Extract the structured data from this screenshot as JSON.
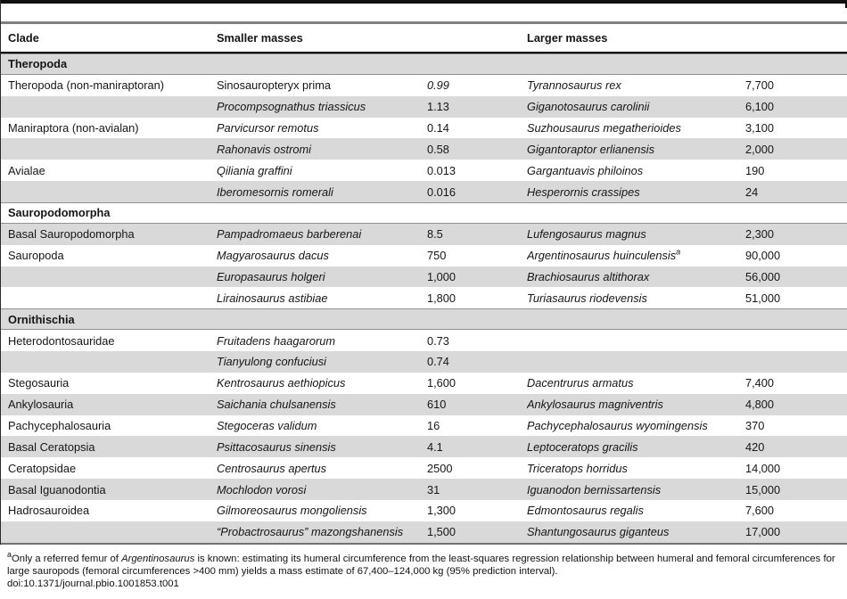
{
  "table": {
    "columns": {
      "clade": "Clade",
      "smaller": "Smaller masses",
      "larger": "Larger masses"
    },
    "rows": [
      {
        "type": "section",
        "label": "Theropoda",
        "shade": "gray"
      },
      {
        "type": "data",
        "shade": "white",
        "clade": "Theropoda (non-maniraptoran)",
        "smaller_species": "Sinosauropteryx prima",
        "smaller_species_italic": false,
        "smaller_mass": "0.99",
        "smaller_mass_italic": true,
        "larger_species": "Tyrannosaurus rex",
        "larger_mass": "7,700"
      },
      {
        "type": "data",
        "shade": "gray",
        "clade": "",
        "smaller_species": "Procompsognathus triassicus",
        "smaller_mass": "1.13",
        "larger_species": "Giganotosaurus carolinii",
        "larger_mass": "6,100"
      },
      {
        "type": "data",
        "shade": "white",
        "clade": "Maniraptora (non-avialan)",
        "smaller_species": "Parvicursor remotus",
        "smaller_mass": "0.14",
        "larger_species": "Suzhousaurus megatherioides",
        "larger_mass": "3,100"
      },
      {
        "type": "data",
        "shade": "gray",
        "clade": "",
        "smaller_species": "Rahonavis ostromi",
        "smaller_mass": "0.58",
        "larger_species": "Gigantoraptor erlianensis",
        "larger_mass": "2,000"
      },
      {
        "type": "data",
        "shade": "white",
        "clade": "Avialae",
        "smaller_species": "Qiliania graffini",
        "smaller_mass": "0.013",
        "larger_species": "Gargantuavis philoinos",
        "larger_mass": "190"
      },
      {
        "type": "data",
        "shade": "gray",
        "clade": "",
        "smaller_species": "Iberomesornis romerali",
        "smaller_mass": "0.016",
        "larger_species": "Hesperornis crassipes",
        "larger_mass": "24"
      },
      {
        "type": "section",
        "label": "Sauropodomorpha",
        "shade": "white"
      },
      {
        "type": "data",
        "shade": "gray",
        "clade": "Basal Sauropodomorpha",
        "smaller_species": "Pampadromaeus barberenai",
        "smaller_mass": "8.5",
        "larger_species": "Lufengosaurus magnus",
        "larger_mass": "2,300"
      },
      {
        "type": "data",
        "shade": "white",
        "clade": "Sauropoda",
        "smaller_species": "Magyarosaurus dacus",
        "smaller_mass": "750",
        "larger_species": "Argentinosaurus huinculensis",
        "larger_species_sup": "a",
        "larger_mass": "90,000"
      },
      {
        "type": "data",
        "shade": "gray",
        "clade": "",
        "smaller_species": "Europasaurus holgeri",
        "smaller_mass": "1,000",
        "larger_species": "Brachiosaurus altithorax",
        "larger_mass": "56,000"
      },
      {
        "type": "data",
        "shade": "white",
        "clade": "",
        "smaller_species": "Lirainosaurus astibiae",
        "smaller_mass": "1,800",
        "larger_species": "Turiasaurus riodevensis",
        "larger_mass": "51,000"
      },
      {
        "type": "section",
        "label": "Ornithischia",
        "shade": "gray"
      },
      {
        "type": "data",
        "shade": "white",
        "clade": "Heterodontosauridae",
        "smaller_species": "Fruitadens haagarorum",
        "smaller_mass": "0.73",
        "larger_species": "",
        "larger_mass": ""
      },
      {
        "type": "data",
        "shade": "gray",
        "clade": "",
        "smaller_species": "Tianyulong confuciusi",
        "smaller_mass": "0.74",
        "larger_species": "",
        "larger_mass": ""
      },
      {
        "type": "data",
        "shade": "white",
        "clade": "Stegosauria",
        "smaller_species": "Kentrosaurus aethiopicus",
        "smaller_mass": "1,600",
        "larger_species": "Dacentrurus armatus",
        "larger_mass": "7,400"
      },
      {
        "type": "data",
        "shade": "gray",
        "clade": "Ankylosauria",
        "smaller_species": "Saichania chulsanensis",
        "smaller_mass": "610",
        "larger_species": "Ankylosaurus magniventris",
        "larger_mass": "4,800"
      },
      {
        "type": "data",
        "shade": "white",
        "clade": "Pachycephalosauria",
        "smaller_species": "Stegoceras validum",
        "smaller_mass": "16",
        "larger_species": "Pachycephalosaurus wyomingensis",
        "larger_mass": "370"
      },
      {
        "type": "data",
        "shade": "gray",
        "clade": "Basal Ceratopsia",
        "smaller_species": "Psittacosaurus sinensis",
        "smaller_mass": "4.1",
        "larger_species": "Leptoceratops gracilis",
        "larger_mass": "420"
      },
      {
        "type": "data",
        "shade": "white",
        "clade": "Ceratopsidae",
        "smaller_species": "Centrosaurus apertus",
        "smaller_mass": "2500",
        "larger_species": "Triceratops horridus",
        "larger_mass": "14,000"
      },
      {
        "type": "data",
        "shade": "gray",
        "clade": "Basal Iguanodontia",
        "smaller_species": "Mochlodon vorosi",
        "smaller_mass": "31",
        "larger_species": "Iguanodon bernissartensis",
        "larger_mass": "15,000"
      },
      {
        "type": "data",
        "shade": "white",
        "clade": "Hadrosauroidea",
        "smaller_species": "Gilmoreosaurus mongoliensis",
        "smaller_mass": "1,300",
        "larger_species": "Edmontosaurus regalis",
        "larger_mass": "7,600"
      },
      {
        "type": "data",
        "shade": "gray",
        "clade": "",
        "smaller_species": "“Probactrosaurus” mazongshanensis",
        "smaller_mass": "1,500",
        "larger_species": "Shantungosaurus giganteus",
        "larger_mass": "17,000"
      }
    ]
  },
  "footnote": {
    "marker": "a",
    "line1_pre_italic": "Only a referred femur of ",
    "line1_italic": "Argentinosaurus",
    "line1_post_italic": " is known: estimating its humeral circumference from the least-squares regression relationship between humeral and femoral circumferences for large sauropods (femoral circumferences >400 mm) yields a mass estimate of 67,400–124,000 kg (95% prediction interval).",
    "doi": "doi:10.1371/journal.pbio.1001853.t001"
  },
  "colors": {
    "row_shade": "#d9d9d9",
    "header_rule": "#000000",
    "top_rule_gray": "#7d7f80",
    "section_border": "#8f9192"
  }
}
